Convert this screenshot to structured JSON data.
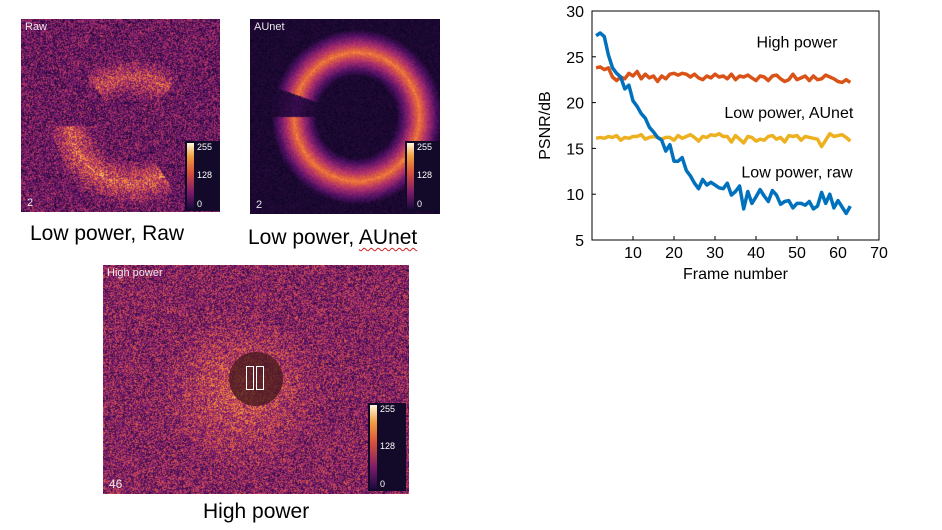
{
  "panels": {
    "raw": {
      "corner_label": "Raw",
      "frame_number": "2",
      "caption": "Low power, Raw",
      "colorbar": {
        "max": "255",
        "mid": "128",
        "min": "0"
      }
    },
    "aunet": {
      "corner_label": "AUnet",
      "frame_number": "2",
      "caption_prefix": "Low power, ",
      "caption_word": "AUnet",
      "colorbar": {
        "max": "255",
        "mid": "128",
        "min": "0"
      }
    },
    "high": {
      "corner_label": "High power",
      "frame_number": "46",
      "caption": "High power",
      "colorbar": {
        "max": "255",
        "mid": "128",
        "min": "0"
      }
    }
  },
  "video_control": {
    "icon": "pause-icon"
  },
  "chart_data": {
    "type": "line",
    "xlabel": "Frame number",
    "ylabel": "PSNR/dB",
    "xlim": [
      0,
      70
    ],
    "ylim": [
      5,
      30
    ],
    "xticks": [
      10,
      20,
      30,
      40,
      50,
      60,
      70
    ],
    "yticks": [
      5,
      10,
      15,
      20,
      25,
      30
    ],
    "grid": false,
    "legend": "inline labels",
    "x": [
      1,
      2,
      3,
      4,
      5,
      6,
      7,
      8,
      9,
      10,
      11,
      12,
      13,
      14,
      15,
      16,
      17,
      18,
      19,
      20,
      21,
      22,
      23,
      24,
      25,
      26,
      27,
      28,
      29,
      30,
      31,
      32,
      33,
      34,
      35,
      36,
      37,
      38,
      39,
      40,
      41,
      42,
      43,
      44,
      45,
      46,
      47,
      48,
      49,
      50,
      51,
      52,
      53,
      54,
      55,
      56,
      57,
      58,
      59,
      60,
      61,
      62,
      63
    ],
    "series": [
      {
        "name": "High power",
        "color": "#d95319",
        "values": [
          23.8,
          23.9,
          23.6,
          23.8,
          22.8,
          22.4,
          22.8,
          22.6,
          23.2,
          22.9,
          23.4,
          22.6,
          23.1,
          22.7,
          22.9,
          22.3,
          22.9,
          22.6,
          23.1,
          23.2,
          23.0,
          23.2,
          23.1,
          22.8,
          23.1,
          22.7,
          22.5,
          22.9,
          22.7,
          23.1,
          22.8,
          22.9,
          22.6,
          23.1,
          22.5,
          22.9,
          22.8,
          23.0,
          22.7,
          22.4,
          22.9,
          22.8,
          22.4,
          22.9,
          23.0,
          22.6,
          22.3,
          22.5,
          23.1,
          22.5,
          22.7,
          22.9,
          22.4,
          22.9,
          22.5,
          22.6,
          23.0,
          22.8,
          22.6,
          22.3,
          22.2,
          22.5,
          22.2
        ]
      },
      {
        "name": "Low power, AUnet",
        "color": "#edb120",
        "values": [
          16.1,
          16.2,
          16.1,
          16.3,
          16.2,
          16.4,
          15.9,
          16.2,
          16.1,
          16.3,
          16.3,
          16.5,
          16.0,
          16.2,
          16.3,
          16.2,
          16.0,
          16.2,
          16.2,
          15.9,
          16.4,
          16.1,
          16.3,
          16.5,
          16.2,
          15.8,
          16.3,
          16.2,
          16.5,
          16.4,
          16.6,
          16.3,
          16.3,
          15.7,
          16.4,
          16.0,
          15.6,
          16.3,
          16.2,
          15.8,
          16.0,
          15.9,
          16.3,
          16.4,
          16.0,
          16.2,
          15.7,
          16.4,
          16.3,
          16.4,
          15.9,
          16.3,
          16.2,
          16.1,
          16.0,
          15.2,
          15.9,
          16.6,
          16.3,
          16.4,
          16.5,
          16.2,
          15.8
        ]
      },
      {
        "name": "Low power, raw",
        "color": "#0072bd",
        "values": [
          27.3,
          27.6,
          27.2,
          25.2,
          23.8,
          23.2,
          22.8,
          21.5,
          21.9,
          20.2,
          19.6,
          18.8,
          18.3,
          17.3,
          16.8,
          16.2,
          15.9,
          14.7,
          15.4,
          13.6,
          13.6,
          14.0,
          12.6,
          12.0,
          11.2,
          10.6,
          11.6,
          11.0,
          11.3,
          11.0,
          10.7,
          10.6,
          11.2,
          9.9,
          10.3,
          10.9,
          8.4,
          10.3,
          9.0,
          9.7,
          10.5,
          9.8,
          9.2,
          10.4,
          9.9,
          8.9,
          9.2,
          9.3,
          8.5,
          9.0,
          9.0,
          8.8,
          9.2,
          8.4,
          8.7,
          10.2,
          9.0,
          10.0,
          8.5,
          9.3,
          8.6,
          7.9,
          8.7
        ]
      }
    ]
  }
}
